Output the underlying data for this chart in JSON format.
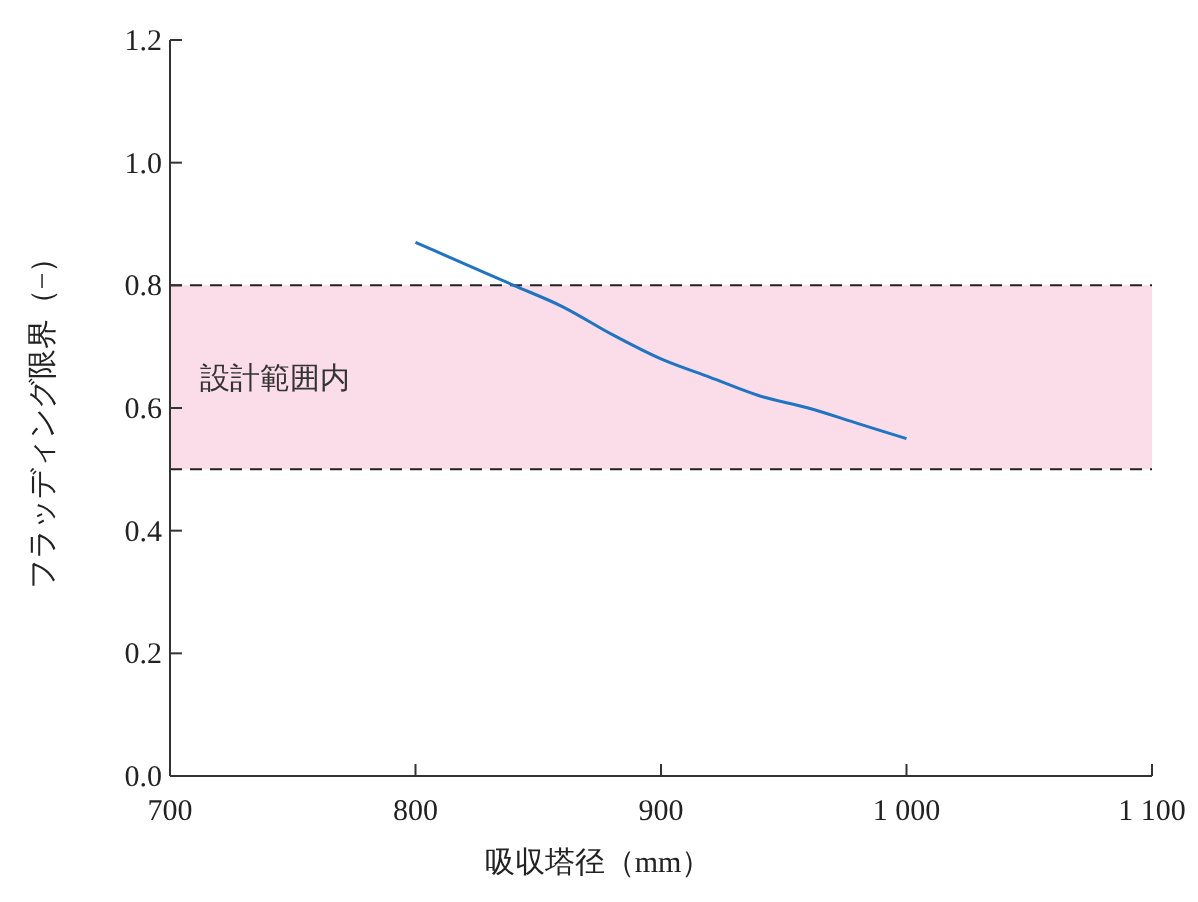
{
  "chart_data": {
    "type": "line",
    "xlabel": "吸収塔径（mm）",
    "ylabel": "フラッディング限界（−）",
    "x": [
      800,
      820,
      840,
      860,
      880,
      900,
      920,
      940,
      960,
      980,
      1000
    ],
    "series": [
      {
        "color": "#1f74c4",
        "values": [
          0.87,
          0.835,
          0.8,
          0.765,
          0.72,
          0.68,
          0.65,
          0.62,
          0.6,
          0.575,
          0.55
        ]
      }
    ],
    "xlim": [
      700,
      1100
    ],
    "xticks": [
      700,
      800,
      900,
      {
        "value": 1000,
        "label": "1 000"
      },
      {
        "value": 1100,
        "label": "1 100"
      }
    ],
    "ylim": [
      0,
      1.2
    ],
    "yticks": [
      {
        "value": 0,
        "label": "0.0"
      },
      0.2,
      0.4,
      0.6,
      0.8,
      {
        "value": 1,
        "label": "1.0"
      },
      1.2
    ],
    "bands": [
      {
        "axis": "y",
        "from": 0.5,
        "to": 0.8,
        "label": "設計範囲内",
        "color": "#fadde9"
      }
    ],
    "ref_lines": [
      {
        "axis": "y",
        "value": 0.8,
        "color": "#222222",
        "line_style": "dashed"
      },
      {
        "axis": "y",
        "value": 0.5,
        "color": "#222222",
        "line_style": "dashed"
      }
    ],
    "grid": false,
    "legend": false,
    "marker": "none",
    "line_style": "solid"
  }
}
